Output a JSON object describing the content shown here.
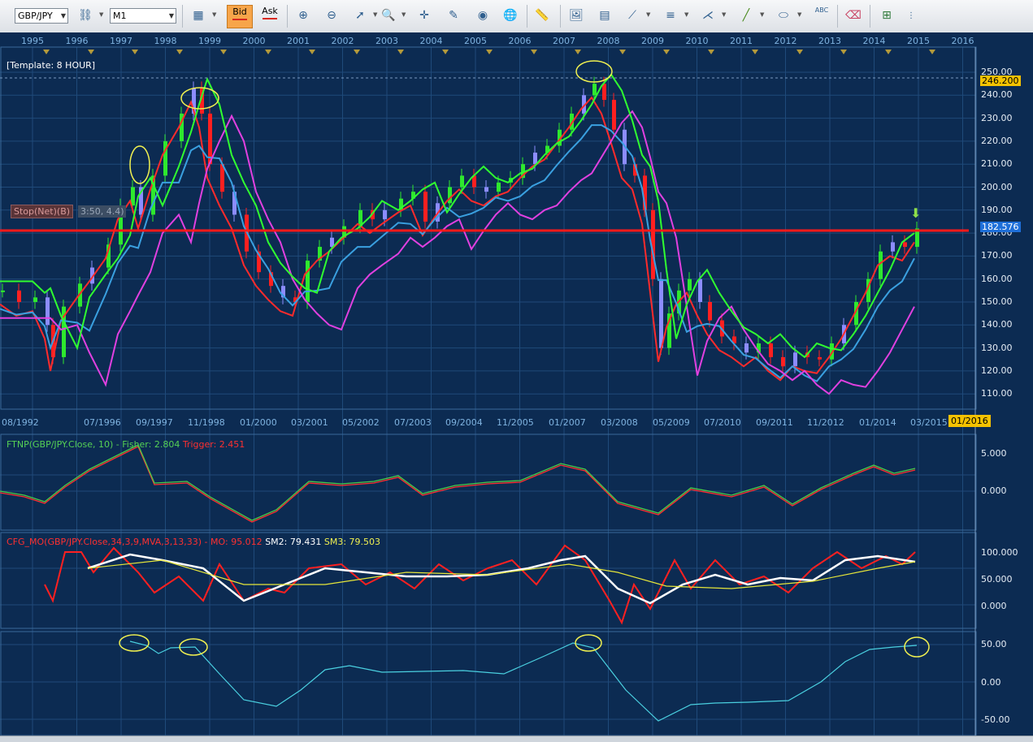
{
  "toolbar": {
    "symbol": "GBP/JPY",
    "timeframe": "M1",
    "bid_label": "Bid",
    "ask_label": "Ask",
    "text_tool_label": "ABC"
  },
  "chart": {
    "template_label": "[Template: 8 HOUR]",
    "years": [
      "1995",
      "1996",
      "1997",
      "1998",
      "1999",
      "2000",
      "2001",
      "2002",
      "2003",
      "2004",
      "2005",
      "2006",
      "2007",
      "2008",
      "2009",
      "2010",
      "2011",
      "2012",
      "2013",
      "2014",
      "2015",
      "2016"
    ],
    "price_ticks": [
      "250.00",
      "240.00",
      "230.00",
      "220.00",
      "210.00",
      "200.00",
      "190.00",
      "180.00",
      "170.00",
      "160.00",
      "150.00",
      "140.00",
      "130.00",
      "120.00",
      "110.00"
    ],
    "high_tag": "246.200",
    "current_tag": "182.576",
    "dates": [
      "08/1992",
      "07/1996",
      "09/1997",
      "11/1998",
      "01/2000",
      "03/2001",
      "05/2002",
      "07/2003",
      "09/2004",
      "11/2005",
      "01/2007",
      "03/2008",
      "05/2009",
      "07/2010",
      "09/2011",
      "11/2012",
      "01/2014",
      "03/2015"
    ],
    "date_highlight": "01/2016",
    "stop_label": "Stop(Net)(B)",
    "stop_coords": "3:50, 4.4)"
  },
  "ftnp": {
    "title": "FTNP(GBP/JPY.Close, 10) - ",
    "fisher": "Fisher: 2.804",
    "trigger": "Trigger: 2.451",
    "ticks": [
      "5.000",
      "0.000"
    ]
  },
  "cfg": {
    "title": "CFG_MO(GBP/JPY.Close,34,3,9,MVA,3,13,33) - ",
    "mo": "MO: 95.012",
    "sm2": "SM2: 79.431",
    "sm3": "SM3: 79.503",
    "ticks": [
      "100.000",
      "50.000",
      "0.000"
    ]
  },
  "osc": {
    "ticks": [
      "50.00",
      "0.00",
      "-50.00"
    ]
  },
  "colors": {
    "background": "#0c2b52",
    "grid": "#1f4a7a",
    "bull_candle": "#2ee82e",
    "bear_candle": "#ff2020",
    "neutral_candle": "#8c8cff",
    "support_line": "#ff1a1a",
    "highlight": "#f5c200",
    "ellipse": "#f0f050"
  }
}
